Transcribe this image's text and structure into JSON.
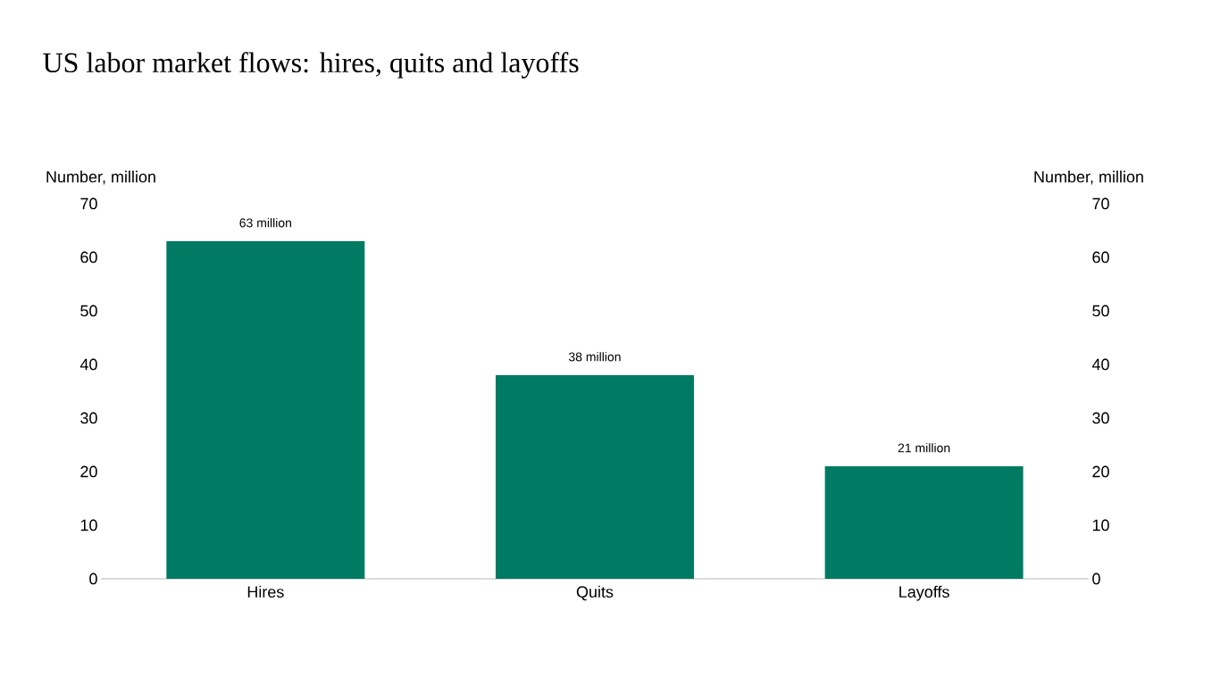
{
  "chart_data": {
    "type": "bar",
    "title": "US labor market flows: hires, quits and layoffs",
    "ylabel": "Number, million",
    "y2label": "Number, million",
    "categories": [
      "Hires",
      "Quits",
      "Layoffs"
    ],
    "values": [
      63,
      38,
      21
    ],
    "value_labels": [
      "63 million",
      "38 million",
      "21 million"
    ],
    "color": "#007b63",
    "ylim": [
      0,
      70
    ],
    "yticks": [
      0,
      10,
      20,
      30,
      40,
      50,
      60,
      70
    ],
    "y2lim": [
      0,
      70
    ],
    "y2ticks": [
      0,
      10,
      20,
      30,
      40,
      50,
      60,
      70
    ]
  }
}
